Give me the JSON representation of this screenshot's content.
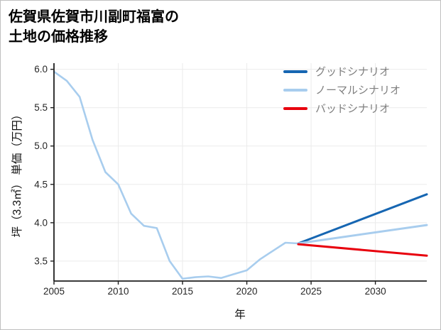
{
  "title": {
    "line1": "佐賀県佐賀市川副町福富の",
    "line2": "土地の価格推移"
  },
  "chart_data": {
    "type": "line",
    "title": "佐賀県佐賀市川副町福富の土地の価格推移",
    "xlabel": "年",
    "ylabel": "坪（3.3㎡） 単価（万円）",
    "xlim": [
      2005,
      2034
    ],
    "ylim": [
      3.24,
      6.08
    ],
    "xticks": [
      2005,
      2010,
      2015,
      2020,
      2025,
      2030
    ],
    "xtick_labels": [
      "2005",
      "2010",
      "2015",
      "2020",
      "2025",
      "2030"
    ],
    "yticks": [
      3.5,
      4.0,
      4.5,
      5.0,
      5.5,
      6.0
    ],
    "ytick_labels": [
      "3.5",
      "4.0",
      "4.5",
      "5.0",
      "5.5",
      "6.0"
    ],
    "grid": true,
    "legend_position": "upper-right-inside",
    "style": {
      "grid_color": "#ebebeb",
      "spine_color": "#1f1f1f",
      "tick_color": "#262626",
      "legend_text_color": "#7f7f7f"
    },
    "series": [
      {
        "id": "history",
        "name": "",
        "in_legend": false,
        "color": "#a8cdee",
        "width": 2.6,
        "x": [
          2005,
          2006,
          2007,
          2008,
          2009,
          2010,
          2011,
          2012,
          2013,
          2014,
          2015,
          2016,
          2017,
          2018,
          2019,
          2020,
          2021,
          2022,
          2023,
          2024
        ],
        "y": [
          5.97,
          5.85,
          5.64,
          5.08,
          4.66,
          4.5,
          4.12,
          3.96,
          3.93,
          3.5,
          3.27,
          3.29,
          3.3,
          3.28,
          3.33,
          3.38,
          3.52,
          3.63,
          3.74,
          3.73
        ]
      },
      {
        "id": "good",
        "name": "グッドシナリオ",
        "in_legend": true,
        "color": "#1666b2",
        "width": 3,
        "x": [
          2024,
          2034
        ],
        "y": [
          3.73,
          4.37
        ]
      },
      {
        "id": "normal",
        "name": "ノーマルシナリオ",
        "in_legend": true,
        "color": "#a8cdee",
        "width": 3,
        "x": [
          2024,
          2034
        ],
        "y": [
          3.73,
          3.97
        ]
      },
      {
        "id": "bad",
        "name": "バッドシナリオ",
        "in_legend": true,
        "color": "#e8000d",
        "width": 3,
        "x": [
          2024,
          2034
        ],
        "y": [
          3.72,
          3.57
        ]
      }
    ]
  }
}
